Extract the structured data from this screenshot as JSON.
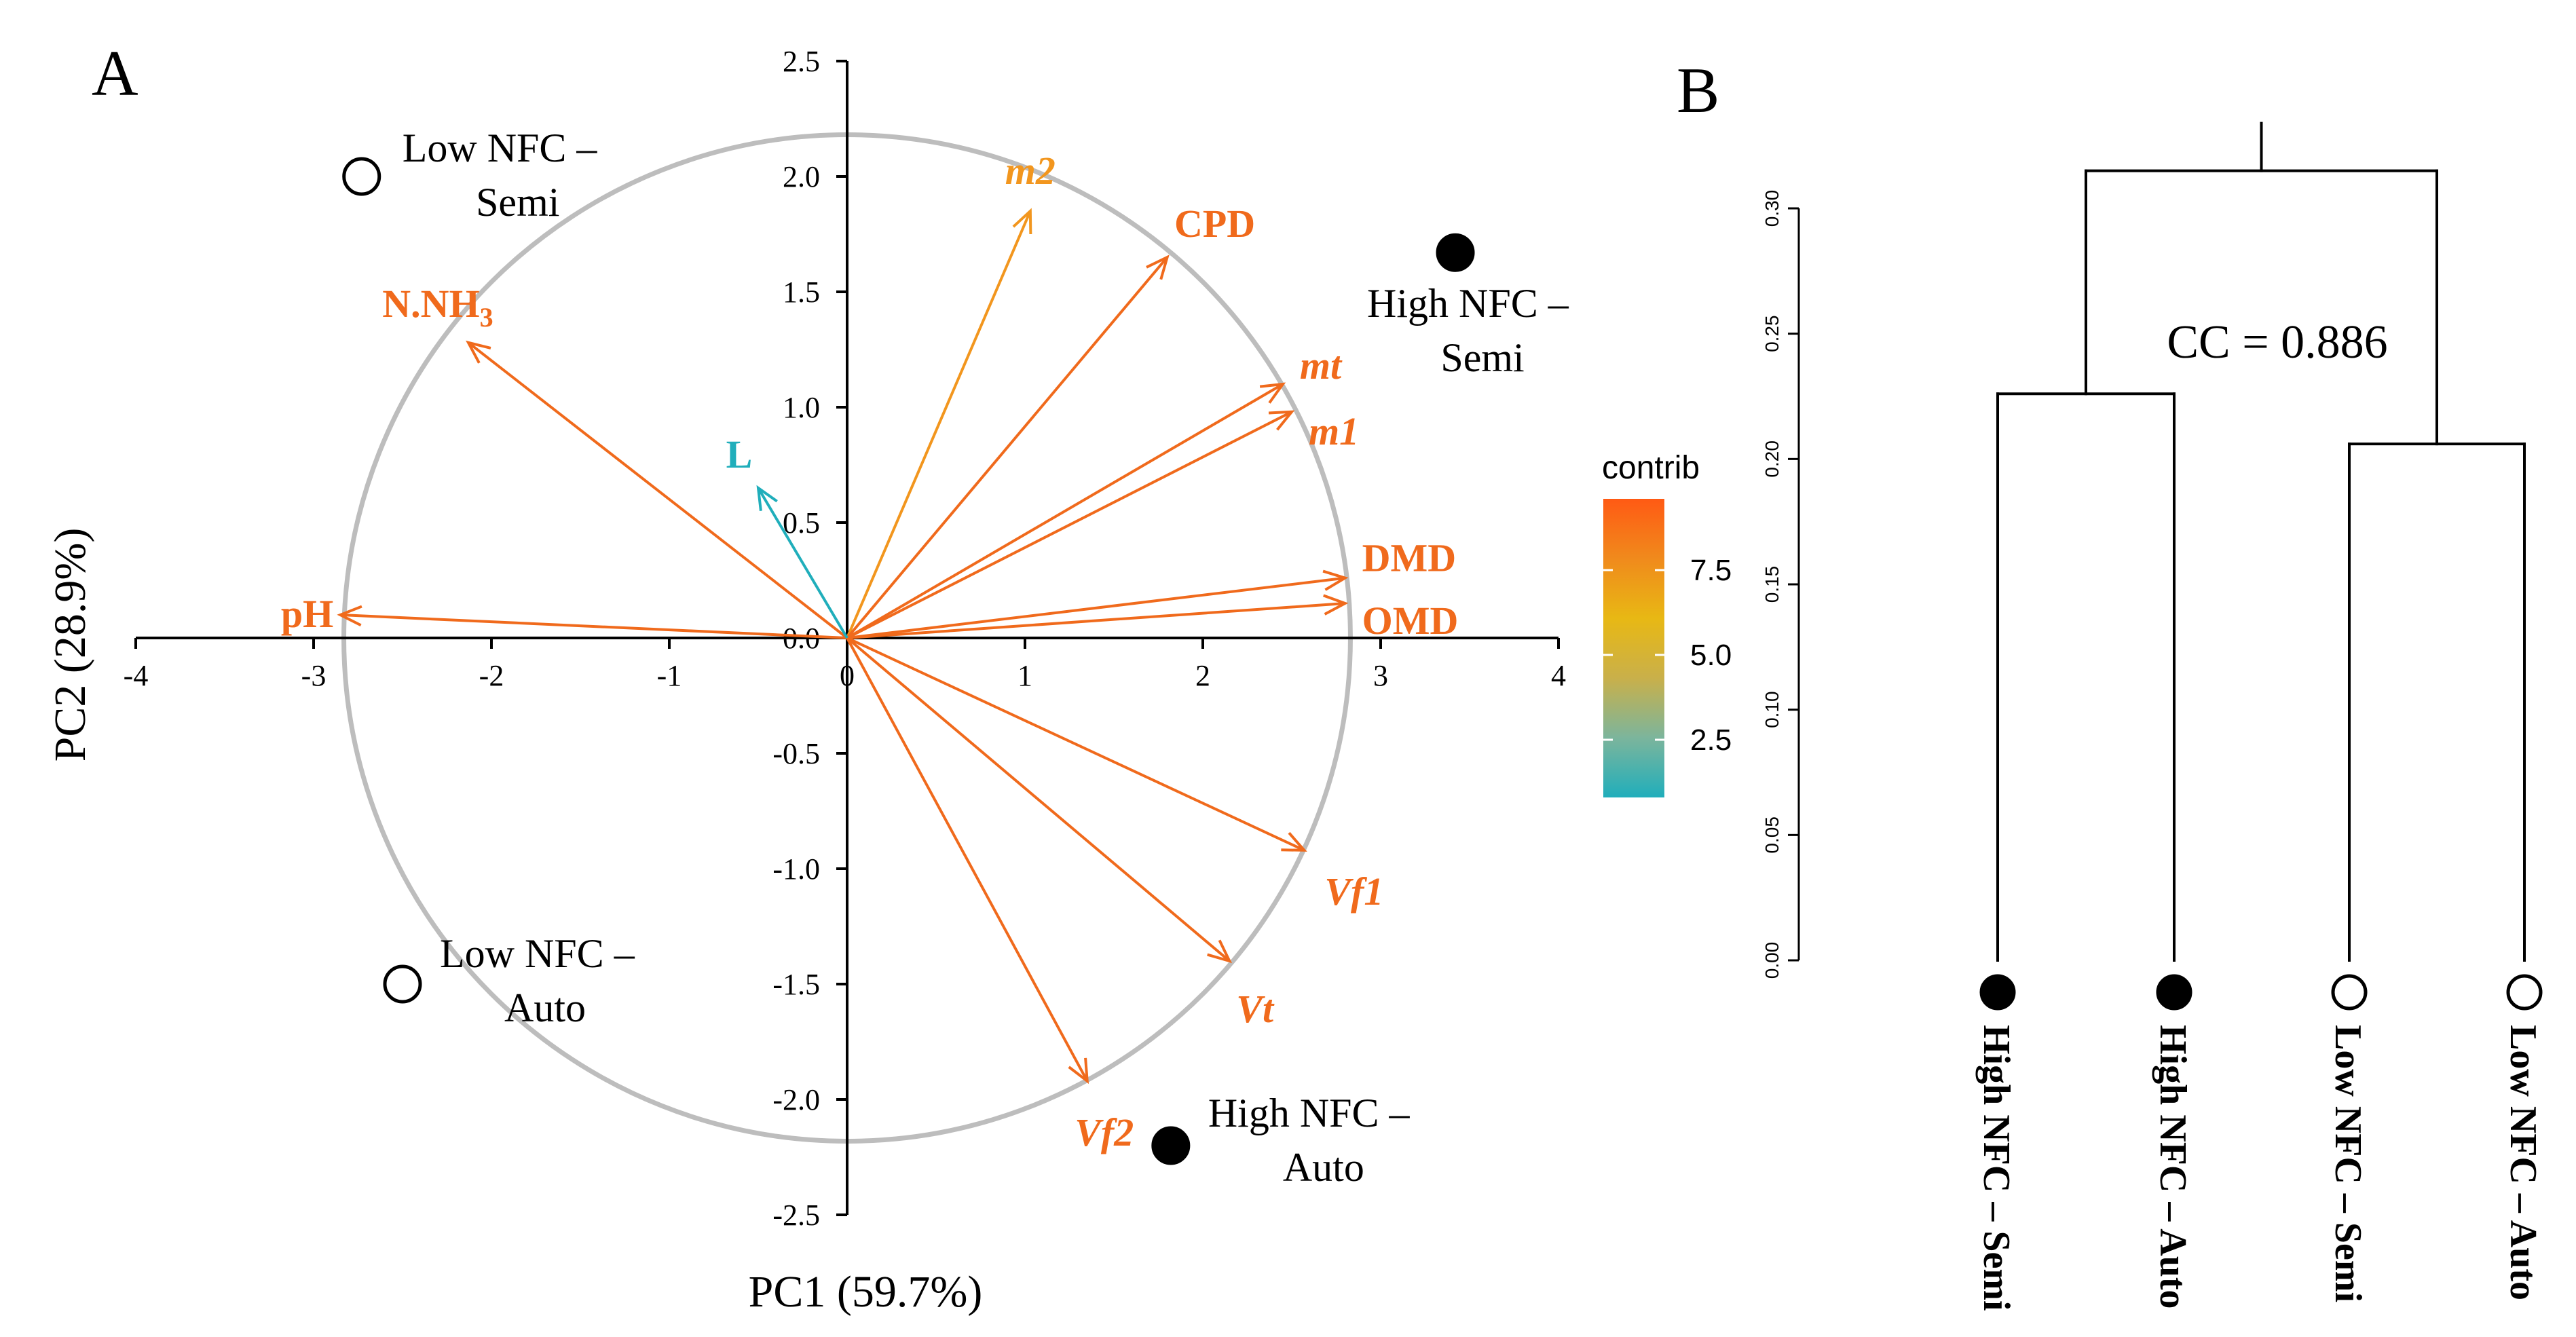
{
  "chart_data": [
    {
      "type": "scatter",
      "panel_label": "A",
      "xlabel": "PC1 (59.7%)",
      "ylabel": "PC2 (28.9%)",
      "xlim": [
        -4,
        4
      ],
      "ylim": [
        -2.5,
        2.5
      ],
      "xticks": [
        "-4",
        "-3",
        "-2",
        "-1",
        "0",
        "1",
        "2",
        "3",
        "4"
      ],
      "yticks": [
        "2.5",
        "2.0",
        "1.5",
        "1.0",
        "0.5",
        "0.0",
        "-0.5",
        "-1.0",
        "-1.5",
        "-2.0",
        "-2.5"
      ],
      "circle_radius": 2.83,
      "variables": [
        {
          "name": "m2",
          "x": 1.03,
          "y": 1.85,
          "contrib": 7.3,
          "color": "#f2961e",
          "italic": true
        },
        {
          "name": "CPD",
          "x": 1.8,
          "y": 1.65,
          "contrib": 8.7,
          "color": "#f06a1c",
          "italic": false
        },
        {
          "name": "mt",
          "x": 2.45,
          "y": 1.1,
          "contrib": 8.9,
          "color": "#f06a1c",
          "italic": true
        },
        {
          "name": "m1",
          "x": 2.5,
          "y": 0.98,
          "contrib": 8.9,
          "color": "#f06a1c",
          "italic": true
        },
        {
          "name": "DMD",
          "x": 2.8,
          "y": 0.26,
          "contrib": 9.0,
          "color": "#f06a1c",
          "italic": false
        },
        {
          "name": "OMD",
          "x": 2.8,
          "y": 0.15,
          "contrib": 9.0,
          "color": "#f06a1c",
          "italic": false
        },
        {
          "name": "Vf1",
          "x": 2.57,
          "y": -0.92,
          "contrib": 8.9,
          "color": "#f06a1c",
          "italic": true
        },
        {
          "name": "Vt",
          "x": 2.15,
          "y": -1.4,
          "contrib": 8.7,
          "color": "#f06a1c",
          "italic": true
        },
        {
          "name": "Vf2",
          "x": 1.35,
          "y": -1.92,
          "contrib": 8.4,
          "color": "#f06a1c",
          "italic": true
        },
        {
          "name": "pH",
          "x": -2.85,
          "y": 0.1,
          "contrib": 9.0,
          "color": "#f06a1c",
          "italic": false
        },
        {
          "name": "N.NH",
          "subscript": "3",
          "x": -2.13,
          "y": 1.28,
          "contrib": 8.6,
          "color": "#f06a1c",
          "italic": false
        },
        {
          "name": "L",
          "x": -0.5,
          "y": 0.65,
          "contrib": 1.2,
          "color": "#20aebb",
          "italic": false
        }
      ],
      "groups": [
        {
          "line1": "Low NFC  –",
          "line2": "Semi",
          "x": -2.73,
          "y": 2.0,
          "filled": false
        },
        {
          "line1": "High NFC –",
          "line2": "Semi",
          "x": 3.42,
          "y": 1.67,
          "filled": true
        },
        {
          "line1": "Low NFC –",
          "line2": "Auto",
          "x": -2.5,
          "y": -1.5,
          "filled": false
        },
        {
          "line1": "High NFC –",
          "line2": "Auto",
          "x": 1.82,
          "y": -2.2,
          "filled": true
        }
      ],
      "legend": {
        "title": "contrib",
        "ticks": [
          "7.5",
          "5.0",
          "2.5"
        ],
        "tick_values": [
          7.5,
          5.0,
          2.5
        ],
        "range": [
          0.8,
          9.6
        ],
        "colors": [
          "#ff5a14",
          "#f08a1c",
          "#e8b814",
          "#c9b04a",
          "#7cb59c",
          "#20aebb"
        ]
      }
    },
    {
      "type": "dendrogram",
      "panel_label": "B",
      "annotation": "CC = 0.886",
      "ylim": [
        0.0,
        0.3
      ],
      "yticks": [
        "0.00",
        "0.05",
        "0.10",
        "0.15",
        "0.20",
        "0.25",
        "0.30"
      ],
      "leaves": [
        {
          "label": "High NFC – Semi",
          "filled": true
        },
        {
          "label": "High NFC – Auto",
          "filled": true
        },
        {
          "label": "Low NFC – Semi",
          "filled": false
        },
        {
          "label": "Low NFC – Auto",
          "filled": false
        }
      ],
      "merges": [
        {
          "left": 0,
          "right": 1,
          "height": 0.226
        },
        {
          "left": 2,
          "right": 3,
          "height": 0.206
        },
        {
          "left": "high-cluster",
          "right": "low-cluster",
          "height": 0.315
        }
      ]
    }
  ]
}
